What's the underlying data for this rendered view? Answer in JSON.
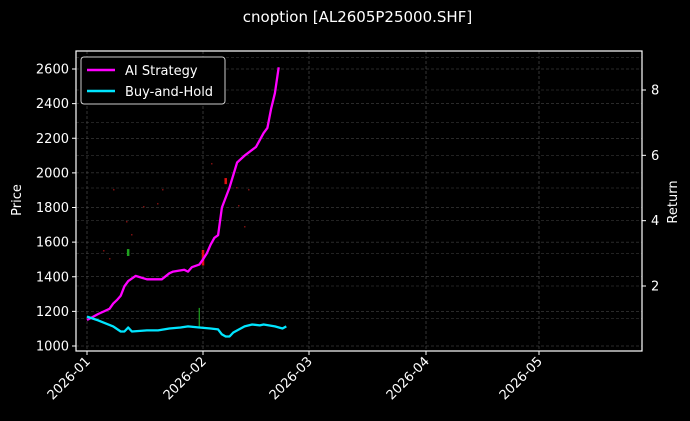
{
  "chart_data": {
    "type": "line",
    "title": "cnoption [AL2605P25000.SHF]",
    "xlabel": "",
    "ylabel": "Price",
    "y2label": "Return",
    "x_ticks": [
      "2026-01",
      "2026-02",
      "2026-03",
      "2026-04",
      "2026-05"
    ],
    "y_ticks": [
      1000,
      1200,
      1400,
      1600,
      1800,
      2000,
      2200,
      2400,
      2600
    ],
    "y2_ticks": [
      2,
      4,
      6,
      8
    ],
    "ylim": [
      970,
      2710
    ],
    "y2lim": [
      0.1,
      9.1
    ],
    "grid": true,
    "legend_position": "upper left",
    "series": [
      {
        "name": "AI Strategy",
        "axis": "left",
        "color": "#ff00ff",
        "x": [
          "2026-01-01",
          "2026-01-04",
          "2026-01-07",
          "2026-01-08",
          "2026-01-09",
          "2026-01-10",
          "2026-01-11",
          "2026-01-12",
          "2026-01-14",
          "2026-01-17",
          "2026-01-21",
          "2026-01-23",
          "2026-01-24",
          "2026-01-27",
          "2026-01-28",
          "2026-01-29",
          "2026-01-31",
          "2026-02-01",
          "2026-02-02",
          "2026-02-03",
          "2026-02-04",
          "2026-02-05",
          "2026-02-06",
          "2026-02-08",
          "2026-02-10",
          "2026-02-11",
          "2026-02-12",
          "2026-02-15",
          "2026-02-17",
          "2026-02-18",
          "2026-02-19",
          "2026-02-20",
          "2026-02-21"
        ],
        "values": [
          1150,
          1185,
          1215,
          1245,
          1265,
          1290,
          1345,
          1375,
          1405,
          1385,
          1385,
          1420,
          1430,
          1440,
          1430,
          1455,
          1470,
          1500,
          1535,
          1585,
          1625,
          1640,
          1800,
          1915,
          2060,
          2080,
          2100,
          2150,
          2230,
          2260,
          2370,
          2460,
          2610
        ]
      },
      {
        "name": "Buy-and-Hold",
        "axis": "left",
        "color": "#00e5ff",
        "x": [
          "2026-01-01",
          "2026-01-04",
          "2026-01-08",
          "2026-01-10",
          "2026-01-11",
          "2026-01-12",
          "2026-01-13",
          "2026-01-17",
          "2026-01-20",
          "2026-01-23",
          "2026-01-26",
          "2026-01-28",
          "2026-01-31",
          "2026-02-03",
          "2026-02-05",
          "2026-02-06",
          "2026-02-07",
          "2026-02-08",
          "2026-02-09",
          "2026-02-12",
          "2026-02-14",
          "2026-02-16",
          "2026-02-17",
          "2026-02-20",
          "2026-02-22",
          "2026-02-23"
        ],
        "values": [
          1170,
          1148,
          1113,
          1084,
          1084,
          1107,
          1084,
          1090,
          1090,
          1101,
          1107,
          1113,
          1107,
          1101,
          1096,
          1067,
          1055,
          1055,
          1078,
          1113,
          1124,
          1119,
          1124,
          1113,
          1101,
          1113
        ]
      }
    ],
    "annotations": [
      {
        "type": "bar-marker",
        "color": "#1fa31f",
        "x": "2026-01-12",
        "y_range": [
          1520,
          1560
        ]
      },
      {
        "type": "bar-marker",
        "color": "#1fa31f",
        "x": "2026-01-31",
        "y_range": [
          1110,
          1220
        ]
      },
      {
        "type": "bar-marker",
        "color": "#e01010",
        "x": "2026-02-01",
        "y_range": [
          1465,
          1555
        ]
      },
      {
        "type": "bar-marker",
        "color": "#e01010",
        "x": "2026-02-07",
        "y_range": [
          1935,
          1970
        ]
      }
    ]
  },
  "legend": {
    "items": [
      {
        "label": "AI Strategy",
        "color": "#ff00ff"
      },
      {
        "label": "Buy-and-Hold",
        "color": "#00e5ff"
      }
    ]
  }
}
